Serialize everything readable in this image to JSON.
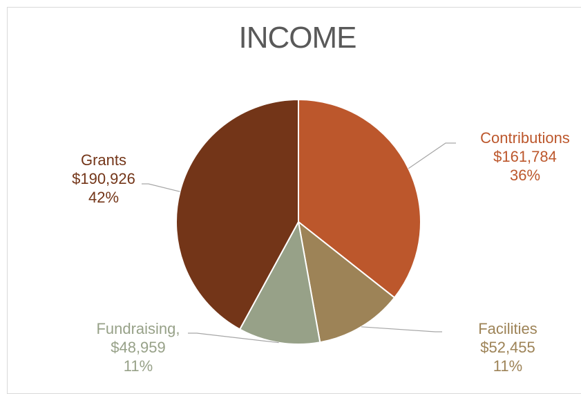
{
  "chart_data": {
    "type": "pie",
    "title": "INCOME",
    "slices": [
      {
        "name": "Contributions",
        "amount": "$161,784",
        "percent": "36%",
        "value": 161784,
        "color": "#bc572c"
      },
      {
        "name": "Facilities",
        "amount": "$52,455",
        "percent": "11%",
        "value": 52455,
        "color": "#9d8357"
      },
      {
        "name": "Fundraising,",
        "amount": "$48,959",
        "percent": "11%",
        "value": 48959,
        "color": "#97a188"
      },
      {
        "name": "Grants",
        "amount": "$190,926",
        "percent": "42%",
        "value": 190926,
        "color": "#733518"
      }
    ],
    "legend": "none"
  }
}
